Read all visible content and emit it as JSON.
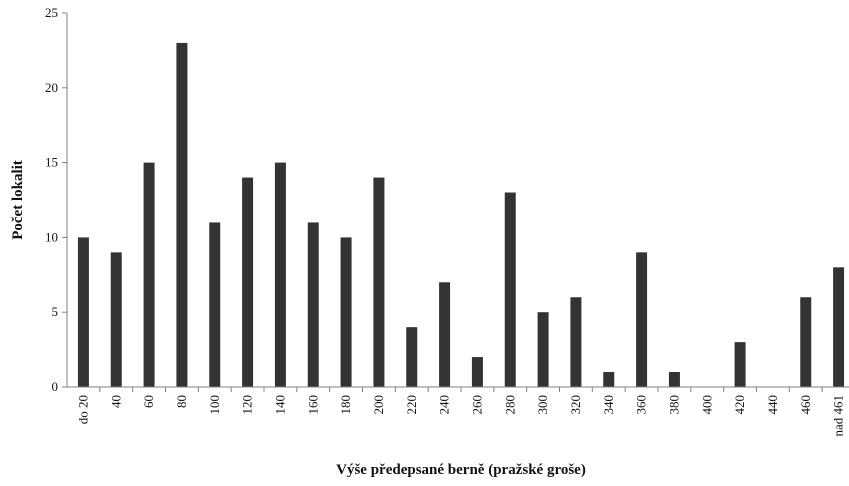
{
  "chart_data": {
    "type": "bar",
    "title": "",
    "xlabel": "Výše předepsané berně (pražské groše)",
    "ylabel": "Počet lokalit",
    "categories": [
      "do 20",
      "40",
      "60",
      "80",
      "100",
      "120",
      "140",
      "160",
      "180",
      "200",
      "220",
      "240",
      "260",
      "280",
      "300",
      "320",
      "340",
      "360",
      "380",
      "400",
      "420",
      "440",
      "460",
      "nad 461"
    ],
    "values": [
      10,
      9,
      15,
      23,
      11,
      14,
      15,
      11,
      10,
      14,
      4,
      7,
      2,
      13,
      5,
      6,
      1,
      9,
      1,
      0,
      3,
      0,
      6,
      8
    ],
    "ylim": [
      0,
      25
    ],
    "yticks": [
      "0",
      "5",
      "10",
      "15",
      "20",
      "25"
    ],
    "grid": false,
    "legend": "none",
    "bar_color": "#333333",
    "axis_color": "#808080"
  }
}
